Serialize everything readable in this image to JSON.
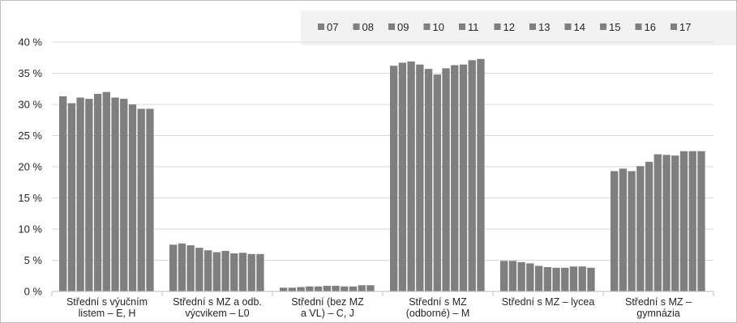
{
  "chart_data": {
    "type": "bar",
    "ylim": [
      0,
      40
    ],
    "y_ticks": [
      "0 %",
      "5 %",
      "10 %",
      "15 %",
      "20 %",
      "25 %",
      "30 %",
      "35 %",
      "40 %"
    ],
    "y_tick_values": [
      0,
      5,
      10,
      15,
      20,
      25,
      30,
      35,
      40
    ],
    "grid": true,
    "legend_position": "top",
    "bar_color": "#7f7f7f",
    "legend_background": "#f2f2f2",
    "gridline_color": "#d9d9d9",
    "categories": [
      [
        "Střední s výučním",
        "listem – E, H"
      ],
      [
        "Střední s MZ a odb.",
        "výcvikem – L0"
      ],
      [
        "Střední (bez MZ",
        "a VL) – C, J"
      ],
      [
        "Střední s MZ",
        "(odborné) – M"
      ],
      [
        "Střední s MZ – lycea"
      ],
      [
        "Střední s MZ –",
        "gymnázia"
      ]
    ],
    "series_names": [
      "07",
      "08",
      "09",
      "10",
      "11",
      "12",
      "13",
      "14",
      "15",
      "16",
      "17"
    ],
    "values": [
      [
        31.3,
        30.2,
        31.1,
        30.9,
        31.7,
        32.0,
        31.1,
        30.9,
        30.0,
        29.3,
        29.3
      ],
      [
        7.5,
        7.7,
        7.4,
        7.0,
        6.6,
        6.3,
        6.5,
        6.1,
        6.2,
        6.0,
        6.0
      ],
      [
        0.6,
        0.6,
        0.7,
        0.8,
        0.8,
        0.9,
        0.9,
        0.8,
        0.8,
        1.0,
        1.0
      ],
      [
        36.2,
        36.7,
        36.9,
        36.4,
        35.7,
        34.8,
        35.8,
        36.3,
        36.4,
        37.1,
        37.3
      ],
      [
        4.9,
        4.9,
        4.7,
        4.5,
        4.1,
        3.9,
        3.8,
        3.8,
        4.0,
        4.0,
        3.8
      ],
      [
        19.3,
        19.7,
        19.3,
        20.1,
        20.8,
        22.0,
        21.9,
        21.8,
        22.5,
        22.5,
        22.5
      ]
    ]
  }
}
